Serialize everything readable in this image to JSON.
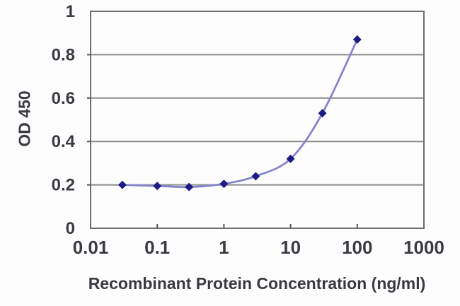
{
  "chart_data": {
    "type": "line",
    "title": "",
    "xlabel": "Recombinant Protein Concentration (ng/ml)",
    "ylabel": "OD 450",
    "x_scale": "log10",
    "xlim": [
      0.01,
      1000
    ],
    "ylim": [
      0,
      1
    ],
    "x_ticks": [
      0.01,
      0.1,
      1,
      10,
      100,
      1000
    ],
    "x_tick_labels": [
      "0.01",
      "0.1",
      "1",
      "10",
      "100",
      "1000"
    ],
    "y_ticks": [
      0,
      0.2,
      0.4,
      0.6,
      0.8,
      1
    ],
    "y_tick_labels": [
      "0",
      "0.2",
      "0.4",
      "0.6",
      "0.8",
      "1"
    ],
    "grid": "horizontal",
    "legend": "none",
    "series": [
      {
        "name": "OD 450",
        "marker": "diamond",
        "smooth": true,
        "x": [
          0.03,
          0.1,
          0.3,
          1,
          3,
          10,
          30,
          100
        ],
        "y": [
          0.2,
          0.195,
          0.19,
          0.205,
          0.24,
          0.32,
          0.53,
          0.87
        ]
      }
    ],
    "colors": {
      "line": "#8583c9",
      "marker": "#1c1c87",
      "grid": "#8a8a8a",
      "border": "#6f6f6f",
      "tick": "#555555",
      "text": "#3a3a43",
      "background": "#fdfdfd"
    }
  }
}
